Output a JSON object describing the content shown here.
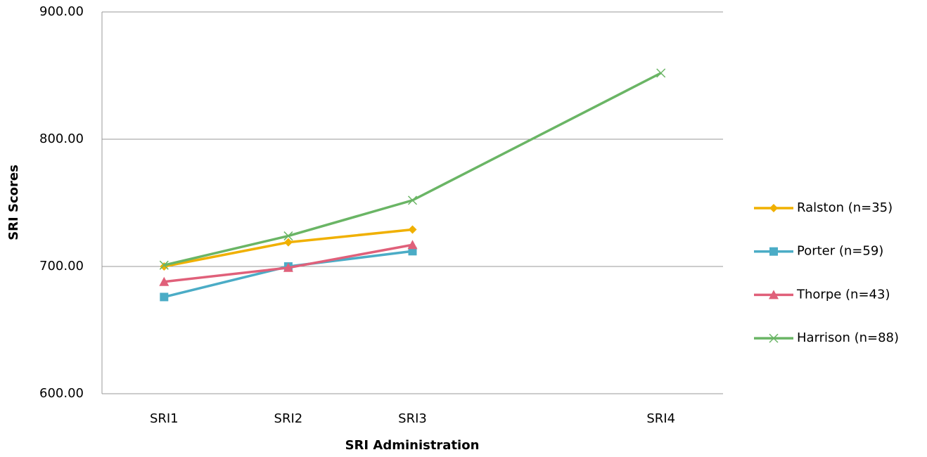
{
  "chart_data": {
    "type": "line",
    "x_label": "SRI Administration",
    "y_label": "SRI Scores",
    "categories": [
      "SRI1",
      "SRI2",
      "SRI3",
      null,
      "SRI4"
    ],
    "series": [
      {
        "name": "Ralston (n=35)",
        "color": "#f0b000",
        "marker": "diamond",
        "values": [
          700,
          719,
          729,
          null,
          null
        ]
      },
      {
        "name": "Porter (n=59)",
        "color": "#4bacc6",
        "marker": "square",
        "values": [
          676,
          700,
          712,
          null,
          null
        ]
      },
      {
        "name": "Thorpe (n=43)",
        "color": "#e0607a",
        "marker": "triangle",
        "values": [
          688,
          699,
          717,
          null,
          null
        ]
      },
      {
        "name": "Harrison (n=88)",
        "color": "#6ab565",
        "marker": "x",
        "values": [
          701,
          724,
          752,
          null,
          852
        ]
      }
    ],
    "ylim": [
      600,
      900
    ],
    "yticks": [
      {
        "value": 600,
        "label": "600.00"
      },
      {
        "value": 700,
        "label": "700.00"
      },
      {
        "value": 800,
        "label": "800.00"
      },
      {
        "value": 900,
        "label": "900.00"
      }
    ],
    "grid": true,
    "span_gaps": true,
    "legend": "right"
  }
}
